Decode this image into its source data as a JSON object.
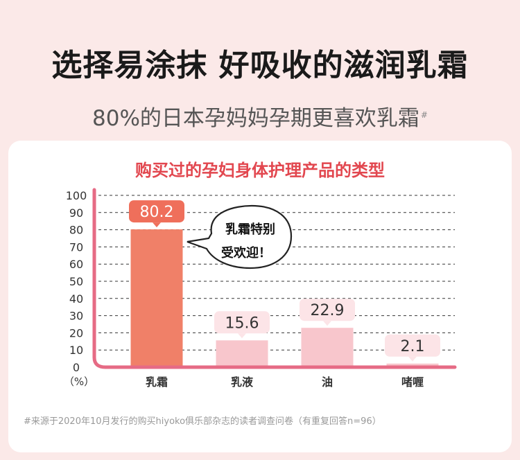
{
  "header": {
    "headline": "选择易涂抹 好吸收的滋润乳霜",
    "subtitle": "80%的日本孕妈妈孕期更喜欢乳霜",
    "subtitle_mark": "#"
  },
  "callout": {
    "line1": "乳霜特别",
    "line2": "受欢迎！"
  },
  "footnote": "#来源于2020年10月发行的购买hiyoko俱乐部杂志的读者调查问卷（有重复回答n=96）",
  "colors": {
    "highlight_bar": "#f08068",
    "highlight_label_bg": "#ef6f5b",
    "normal_bar": "#f8c6cc",
    "normal_label_bg": "#fce4e7",
    "axis": "#e66b85",
    "title": "#e2474f"
  },
  "chart_data": {
    "type": "bar",
    "title": "购买过的孕妇身体护理产品的类型",
    "ylabel": "（%）",
    "categories": [
      "乳霜",
      "乳液",
      "油",
      "啫喱"
    ],
    "values": [
      80.2,
      15.6,
      22.9,
      2.1
    ],
    "value_labels": [
      "80.2",
      "15.6",
      "22.9",
      "2.1"
    ],
    "highlight_index": 0,
    "ylim": [
      0,
      100
    ],
    "yticks": [
      "0",
      "10",
      "20",
      "30",
      "40",
      "50",
      "60",
      "70",
      "80",
      "90",
      "100"
    ],
    "grid": true,
    "grid_style": "dashed"
  }
}
